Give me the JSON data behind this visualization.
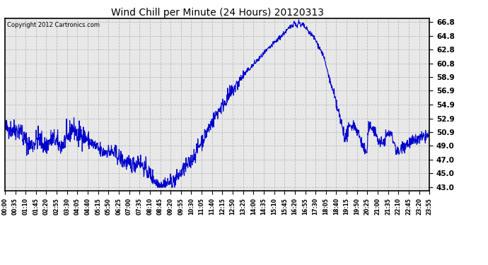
{
  "title": "Wind Chill per Minute (24 Hours) 20120313",
  "copyright": "Copyright 2012 Cartronics.com",
  "line_color": "#0000CC",
  "bg_color": "#ffffff",
  "plot_bg_color": "#e8e8e8",
  "grid_color": "#bbbbbb",
  "yticks": [
    43.0,
    45.0,
    47.0,
    49.0,
    50.9,
    52.9,
    54.9,
    56.9,
    58.9,
    60.8,
    62.8,
    64.8,
    66.8
  ],
  "ylim": [
    42.5,
    67.3
  ],
  "xtick_labels": [
    "00:00",
    "00:35",
    "01:10",
    "01:45",
    "02:20",
    "02:55",
    "03:30",
    "04:05",
    "04:40",
    "05:15",
    "05:50",
    "06:25",
    "07:00",
    "07:35",
    "08:10",
    "08:45",
    "09:20",
    "09:55",
    "10:30",
    "11:05",
    "11:40",
    "12:15",
    "12:50",
    "13:25",
    "14:00",
    "14:35",
    "15:10",
    "15:45",
    "16:20",
    "16:55",
    "17:30",
    "18:05",
    "18:40",
    "19:15",
    "19:50",
    "20:25",
    "21:00",
    "21:35",
    "22:10",
    "22:45",
    "23:20",
    "23:55"
  ],
  "figsize": [
    6.9,
    3.75
  ],
  "dpi": 100
}
